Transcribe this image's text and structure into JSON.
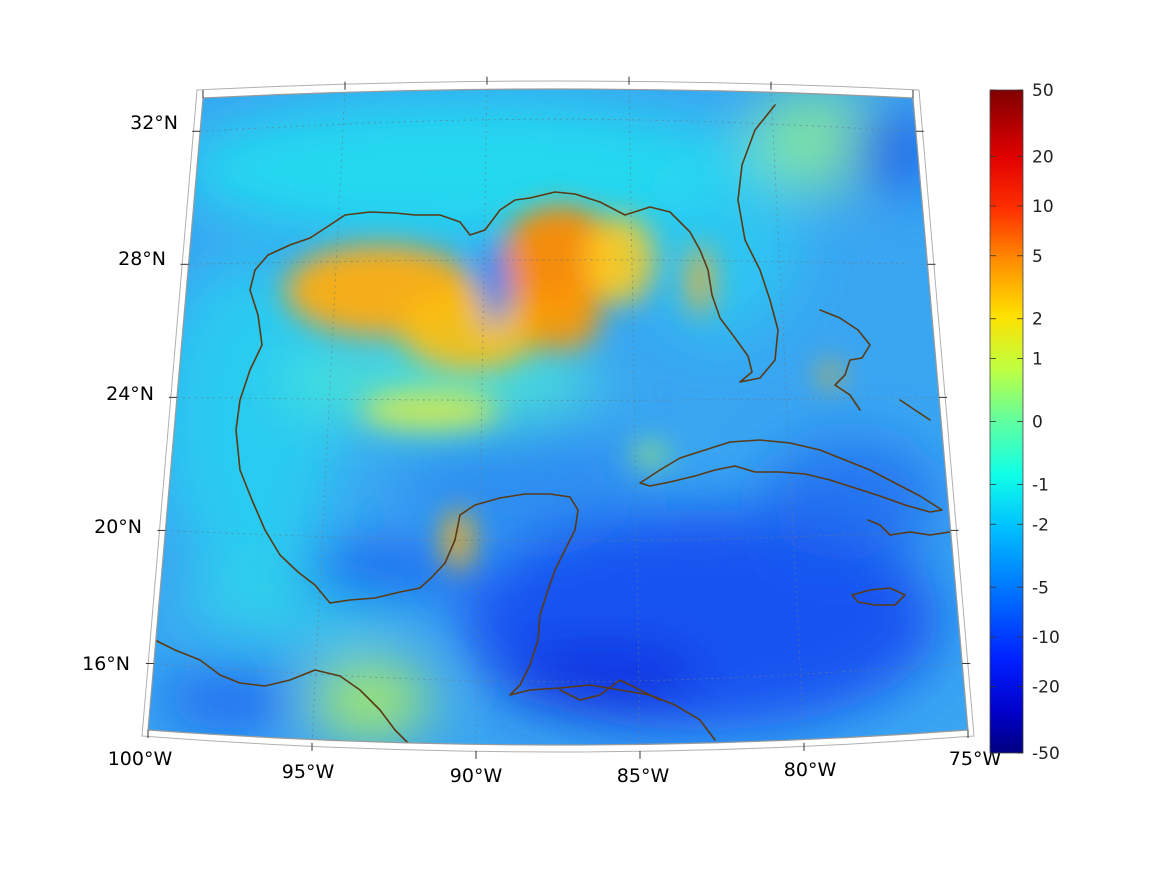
{
  "colors": {
    "ocean_base": "#3aa6f2",
    "coastline": "#5a3a14",
    "frame": "#9a9a9a"
  },
  "map": {
    "projection": "conic",
    "lon_range": [
      -100,
      -75
    ],
    "lat_range": [
      14,
      33
    ],
    "lon_ticks": [
      {
        "lon": -100,
        "label": "100°W"
      },
      {
        "lon": -95,
        "label": "95°W"
      },
      {
        "lon": -90,
        "label": "90°W"
      },
      {
        "lon": -85,
        "label": "85°W"
      },
      {
        "lon": -80,
        "label": "80°W"
      },
      {
        "lon": -75,
        "label": "75°W"
      }
    ],
    "lat_ticks": [
      {
        "lat": 32,
        "label": "32°N"
      },
      {
        "lat": 28,
        "label": "28°N"
      },
      {
        "lat": 24,
        "label": "24°N"
      },
      {
        "lat": 20,
        "label": "20°N"
      },
      {
        "lat": 16,
        "label": "16°N"
      }
    ],
    "grid": true
  },
  "colorbar": {
    "colormap": "jet",
    "ticks": [
      {
        "value": 50,
        "label": "50"
      },
      {
        "value": 20,
        "label": "20"
      },
      {
        "value": 10,
        "label": "10"
      },
      {
        "value": 5,
        "label": "5"
      },
      {
        "value": 2,
        "label": "2"
      },
      {
        "value": 1,
        "label": "1"
      },
      {
        "value": 0,
        "label": "0"
      },
      {
        "value": -1,
        "label": "-1"
      },
      {
        "value": -2,
        "label": "-2"
      },
      {
        "value": -5,
        "label": "-5"
      },
      {
        "value": -10,
        "label": "-10"
      },
      {
        "value": -20,
        "label": "-20"
      },
      {
        "value": -50,
        "label": "-50"
      }
    ]
  }
}
